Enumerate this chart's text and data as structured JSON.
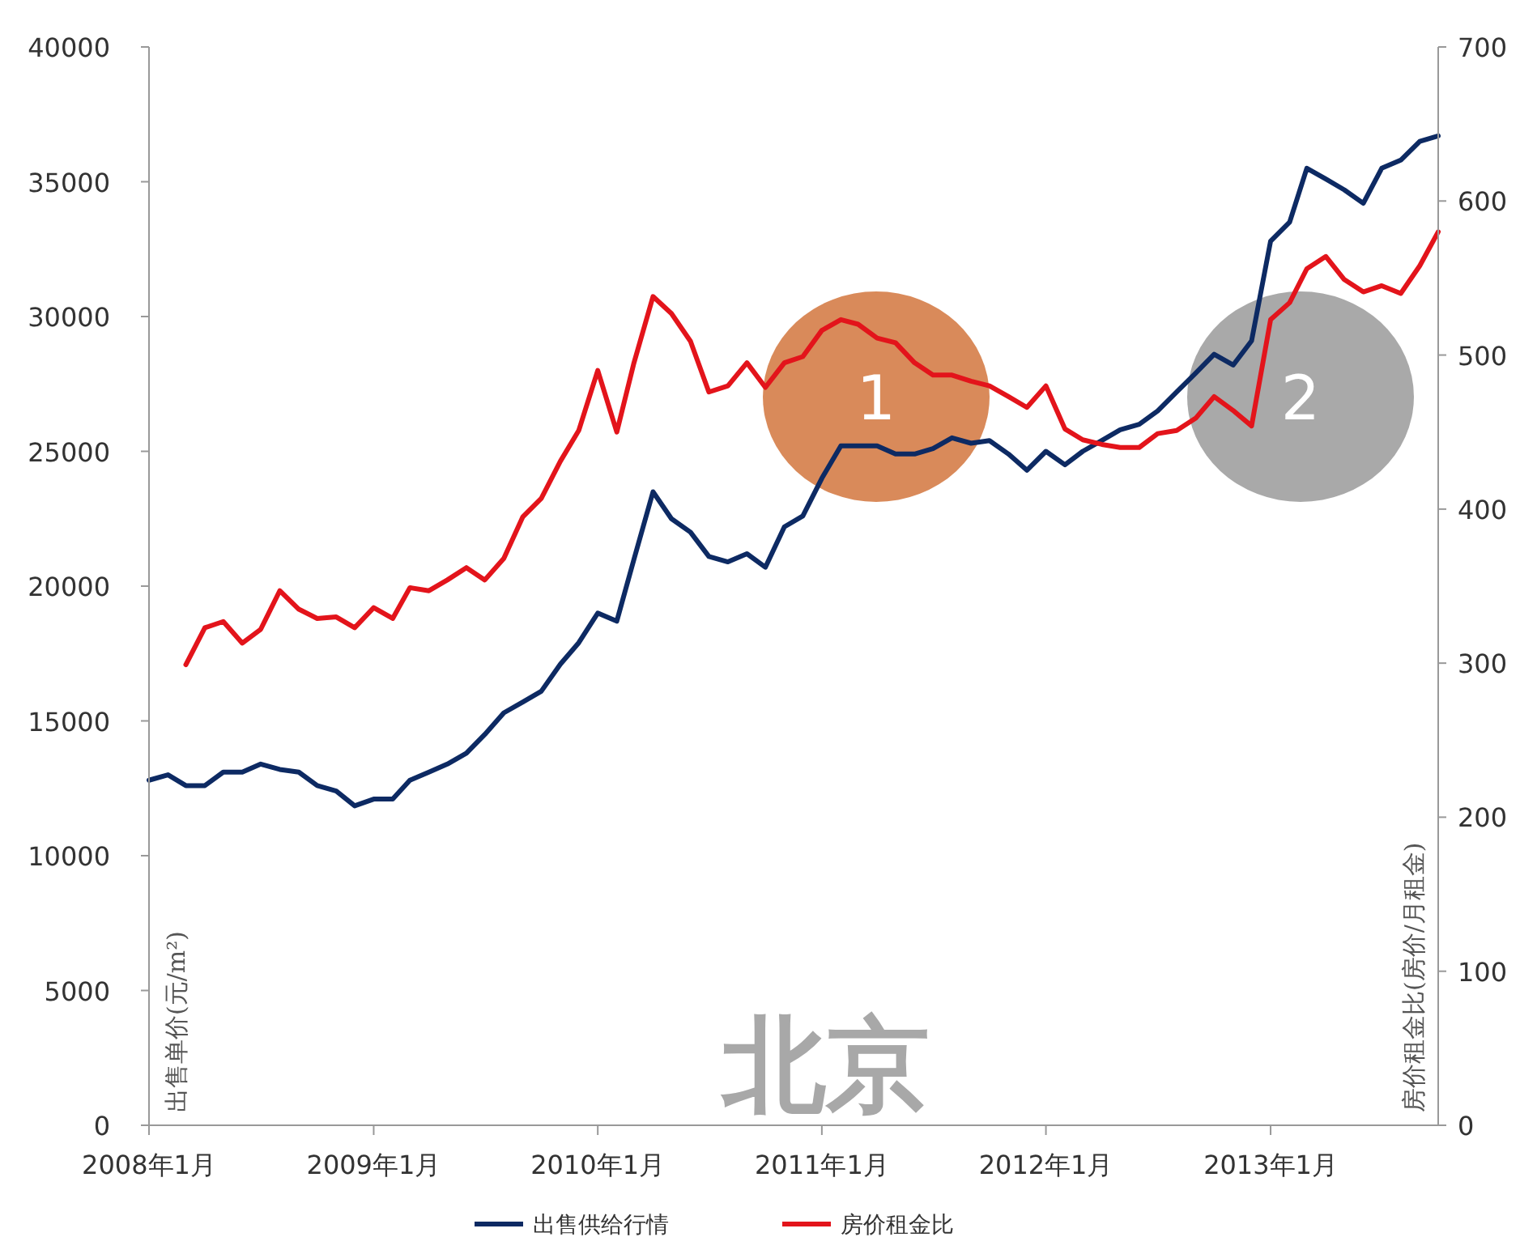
{
  "chart_data": {
    "type": "line",
    "x": [
      "2008-01",
      "2008-02",
      "2008-03",
      "2008-04",
      "2008-05",
      "2008-06",
      "2008-07",
      "2008-08",
      "2008-09",
      "2008-10",
      "2008-11",
      "2008-12",
      "2009-01",
      "2009-02",
      "2009-03",
      "2009-04",
      "2009-05",
      "2009-06",
      "2009-07",
      "2009-08",
      "2009-09",
      "2009-10",
      "2009-11",
      "2009-12",
      "2010-01",
      "2010-02",
      "2010-03",
      "2010-04",
      "2010-05",
      "2010-06",
      "2010-07",
      "2010-08",
      "2010-09",
      "2010-10",
      "2010-11",
      "2010-12",
      "2011-01",
      "2011-02",
      "2011-03",
      "2011-04",
      "2011-05",
      "2011-06",
      "2011-07",
      "2011-08",
      "2011-09",
      "2011-10",
      "2011-11",
      "2011-12",
      "2012-01",
      "2012-02",
      "2012-03",
      "2012-04",
      "2012-05",
      "2012-06",
      "2012-07",
      "2012-08",
      "2012-09",
      "2012-10",
      "2012-11",
      "2012-12",
      "2013-01",
      "2013-02",
      "2013-03",
      "2013-04",
      "2013-05",
      "2013-06",
      "2013-07",
      "2013-08",
      "2013-09",
      "2013-10"
    ],
    "series": [
      {
        "name": "出售供给行情",
        "color": "#0d2a63",
        "values": [
          12800,
          13000,
          12600,
          12600,
          13100,
          13100,
          13400,
          13200,
          13100,
          12600,
          12400,
          11850,
          12100,
          12100,
          12800,
          13100,
          13400,
          13800,
          14500,
          15300,
          15700,
          16100,
          17100,
          17900,
          19000,
          18700,
          21000,
          23500,
          22500,
          22000,
          21100,
          20900,
          21200,
          20700,
          22200,
          22600,
          24000,
          25200,
          25200,
          25200,
          24900,
          24900,
          25100,
          25500,
          25300,
          25400,
          24900,
          24300,
          25000,
          24500,
          25000,
          25400,
          25800,
          26000,
          26500,
          27200,
          27900,
          28600,
          28200,
          29100,
          32800,
          33500,
          35500,
          35100,
          34700,
          34200,
          35500,
          35800,
          36500,
          36700
        ]
      },
      {
        "name": "房价租金比",
        "color": "#e3141b",
        "axis": "y2",
        "values": [
          null,
          null,
          299,
          323,
          327,
          313,
          322,
          347,
          335,
          329,
          330,
          323,
          336,
          329,
          349,
          347,
          354,
          362,
          354,
          368,
          395,
          407,
          431,
          451,
          490,
          450,
          495,
          538,
          527,
          509,
          476,
          480,
          495,
          479,
          495,
          499,
          516,
          523,
          520,
          511,
          508,
          495,
          487,
          487,
          483,
          480,
          473,
          466,
          480,
          452,
          445,
          442,
          440,
          440,
          449,
          451,
          459,
          473,
          464,
          454,
          523,
          534,
          556,
          564,
          549,
          541,
          545,
          540,
          558,
          580
        ]
      }
    ],
    "xlim": [
      "2008-01",
      "2013-10"
    ],
    "xticks": [
      {
        "value": "2008-01",
        "label": "2008年1月"
      },
      {
        "value": "2009-01",
        "label": "2009年1月"
      },
      {
        "value": "2010-01",
        "label": "2010年1月"
      },
      {
        "value": "2011-01",
        "label": "2011年1月"
      },
      {
        "value": "2012-01",
        "label": "2012年1月"
      },
      {
        "value": "2013-01",
        "label": "2013年1月"
      }
    ],
    "ylim": [
      0,
      40000
    ],
    "yticks": [
      0,
      5000,
      10000,
      15000,
      20000,
      25000,
      30000,
      35000,
      40000
    ],
    "y2lim": [
      0,
      700
    ],
    "y2ticks": [
      0,
      100,
      200,
      300,
      400,
      500,
      600,
      700
    ],
    "ylabel": "出售单价(元/m²)",
    "y2label": "房价租金比(房价/月租金)",
    "annotations": [
      "北京",
      "1",
      "2"
    ],
    "legend": "bottom"
  }
}
